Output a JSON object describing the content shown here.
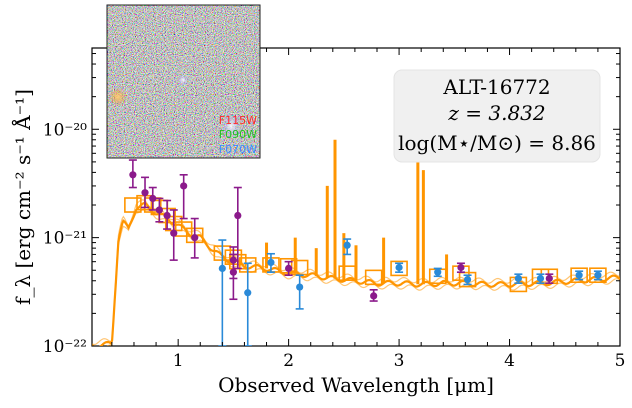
{
  "chart_data": {
    "type": "scatter",
    "xlabel": "Observed Wavelength [μm]",
    "ylabel": "f_λ [erg cm⁻² s⁻¹ Å⁻¹]",
    "xlim": [
      0.22,
      5.0
    ],
    "ylim_log10": [
      -22,
      -19.25
    ],
    "y_scale": "log",
    "x_ticks": [
      1,
      2,
      3,
      4,
      5
    ],
    "y_ticks": [
      {
        "exp": -22,
        "label": "10⁻²²"
      },
      {
        "exp": -21,
        "label": "10⁻²¹"
      },
      {
        "exp": -20,
        "label": "10⁻²⁰"
      }
    ],
    "info_box": {
      "object": "ALT-16772",
      "redshift": "z = 3.832",
      "mass": "log(M⋆/M⊙) = 8.86"
    },
    "cutout": {
      "filters": [
        {
          "label": "F115W",
          "color": "#ff2a2a"
        },
        {
          "label": "F090W",
          "color": "#22a822"
        },
        {
          "label": "F070W",
          "color": "#3a7dff"
        }
      ]
    },
    "colors": {
      "model": "#ff9500",
      "purple": "#8b1a8b",
      "blue": "#2a8ad8"
    },
    "series": [
      {
        "marker": "purple",
        "points": [
          {
            "x": 0.59,
            "y": 3.8e-21,
            "ylo": 2.9e-21,
            "yhi": 5.2e-21
          },
          {
            "x": 0.7,
            "y": 2.6e-21,
            "ylo": 1.9e-21,
            "yhi": 3.6e-21
          },
          {
            "x": 0.77,
            "y": 2.3e-21,
            "ylo": 1.8e-21,
            "yhi": 2.9e-21
          },
          {
            "x": 0.83,
            "y": 1.8e-21,
            "ylo": 1.4e-21,
            "yhi": 2.3e-21
          },
          {
            "x": 0.9,
            "y": 1.6e-21,
            "ylo": 1.2e-21,
            "yhi": 2.2e-21
          },
          {
            "x": 0.96,
            "y": 1.1e-21,
            "ylo": 6.2e-22,
            "yhi": 1.8e-21
          },
          {
            "x": 1.05,
            "y": 3e-21,
            "ylo": 1.5e-21,
            "yhi": 3.8e-21
          },
          {
            "x": 1.15,
            "y": 1e-21,
            "ylo": 6.5e-22,
            "yhi": 1.5e-21
          },
          {
            "x": 1.5,
            "y": 6.2e-22,
            "ylo": 4.2e-22,
            "yhi": 8.2e-22
          },
          {
            "x": 1.5,
            "y": 4.8e-22,
            "ylo": 2.7e-22,
            "yhi": 7e-22
          },
          {
            "x": 1.54,
            "y": 1.6e-21,
            "ylo": 5.2e-22,
            "yhi": 2.9e-21
          },
          {
            "x": 2.0,
            "y": 5.2e-22,
            "ylo": 4.5e-22,
            "yhi": 6e-22
          },
          {
            "x": 2.77,
            "y": 2.9e-22,
            "ylo": 2.6e-22,
            "yhi": 3.3e-22
          },
          {
            "x": 3.56,
            "y": 5.3e-22,
            "ylo": 4.8e-22,
            "yhi": 5.8e-22
          },
          {
            "x": 4.36,
            "y": 4.2e-22,
            "ylo": 3.8e-22,
            "yhi": 4.6e-22
          }
        ]
      },
      {
        "marker": "blue",
        "points": [
          {
            "x": 1.4,
            "y": 5.2e-22,
            "ylo": 1e-22,
            "yhi": 9.5e-22
          },
          {
            "x": 1.63,
            "y": 3.1e-22,
            "ylo": 1e-22,
            "yhi": 5.8e-22
          },
          {
            "x": 1.84,
            "y": 5.9e-22,
            "ylo": 4.8e-22,
            "yhi": 7.1e-22
          },
          {
            "x": 2.1,
            "y": 3.5e-22,
            "ylo": 2.2e-22,
            "yhi": 4.5e-22
          },
          {
            "x": 2.53,
            "y": 8.5e-22,
            "ylo": 7e-22,
            "yhi": 9.7e-22
          },
          {
            "x": 3.0,
            "y": 5.3e-22,
            "ylo": 4.8e-22,
            "yhi": 5.8e-22
          },
          {
            "x": 3.35,
            "y": 4.8e-22,
            "ylo": 4.4e-22,
            "yhi": 5.2e-22
          },
          {
            "x": 3.62,
            "y": 4.1e-22,
            "ylo": 3.7e-22,
            "yhi": 4.5e-22
          },
          {
            "x": 4.08,
            "y": 4.2e-22,
            "ylo": 3.8e-22,
            "yhi": 4.6e-22
          },
          {
            "x": 4.28,
            "y": 4.2e-22,
            "ylo": 3.8e-22,
            "yhi": 4.6e-22
          },
          {
            "x": 4.63,
            "y": 4.5e-22,
            "ylo": 4.1e-22,
            "yhi": 4.9e-22
          },
          {
            "x": 4.8,
            "y": 4.5e-22,
            "ylo": 4.1e-22,
            "yhi": 4.9e-22
          }
        ]
      },
      {
        "marker": "model-box",
        "points": [
          {
            "x": 0.59,
            "y": 2e-21
          },
          {
            "x": 0.7,
            "y": 2.1e-21
          },
          {
            "x": 0.77,
            "y": 2e-21
          },
          {
            "x": 0.83,
            "y": 1.9e-21
          },
          {
            "x": 0.9,
            "y": 1.6e-21
          },
          {
            "x": 0.96,
            "y": 1.35e-21
          },
          {
            "x": 1.05,
            "y": 1.2e-21
          },
          {
            "x": 1.15,
            "y": 1.05e-21
          },
          {
            "x": 1.4,
            "y": 7.2e-22
          },
          {
            "x": 1.5,
            "y": 6.6e-22
          },
          {
            "x": 1.54,
            "y": 6e-22
          },
          {
            "x": 1.63,
            "y": 5.6e-22
          },
          {
            "x": 1.84,
            "y": 5.6e-22
          },
          {
            "x": 2.0,
            "y": 5.5e-22
          },
          {
            "x": 2.1,
            "y": 5.3e-22
          },
          {
            "x": 2.53,
            "y": 4.7e-22
          },
          {
            "x": 2.77,
            "y": 4.3e-22
          },
          {
            "x": 3.0,
            "y": 5.2e-22
          },
          {
            "x": 3.35,
            "y": 4.4e-22
          },
          {
            "x": 3.56,
            "y": 4.7e-22
          },
          {
            "x": 3.62,
            "y": 4.1e-22
          },
          {
            "x": 4.08,
            "y": 3.7e-22
          },
          {
            "x": 4.28,
            "y": 4.4e-22
          },
          {
            "x": 4.36,
            "y": 4.4e-22
          },
          {
            "x": 4.63,
            "y": 4.5e-22
          },
          {
            "x": 4.8,
            "y": 4.5e-22
          }
        ]
      }
    ],
    "model_spectrum": {
      "continuum": [
        [
          0.22,
          1e-22
        ],
        [
          0.4,
          1.05e-22
        ],
        [
          0.46,
          1e-21
        ],
        [
          0.5,
          1.4e-21
        ],
        [
          0.55,
          1.2e-21
        ],
        [
          0.62,
          1.9e-21
        ],
        [
          0.7,
          2e-21
        ],
        [
          0.8,
          1.7e-21
        ],
        [
          0.9,
          1.5e-21
        ],
        [
          1.0,
          1.3e-21
        ],
        [
          1.1,
          1.1e-21
        ],
        [
          1.2,
          1e-21
        ],
        [
          1.3,
          8e-22
        ],
        [
          1.4,
          6.6e-22
        ],
        [
          1.5,
          6e-22
        ],
        [
          1.6,
          5.5e-22
        ],
        [
          1.8,
          5.2e-22
        ],
        [
          2.0,
          4.7e-22
        ],
        [
          2.2,
          4.5e-22
        ],
        [
          2.4,
          4.2e-22
        ],
        [
          2.6,
          4e-22
        ],
        [
          2.8,
          3.8e-22
        ],
        [
          3.0,
          3.8e-22
        ],
        [
          3.2,
          3.7e-22
        ],
        [
          3.4,
          3.8e-22
        ],
        [
          3.6,
          3.8e-22
        ],
        [
          3.8,
          3.7e-22
        ],
        [
          4.0,
          3.7e-22
        ],
        [
          4.3,
          3.8e-22
        ],
        [
          4.6,
          4e-22
        ],
        [
          5.0,
          4.3e-22
        ]
      ],
      "lines": [
        {
          "x": 1.8,
          "peak": 9e-22
        },
        {
          "x": 2.06,
          "peak": 1e-21
        },
        {
          "x": 2.25,
          "peak": 8e-22
        },
        {
          "x": 2.35,
          "peak": 3e-21
        },
        {
          "x": 2.42,
          "peak": 8e-21
        },
        {
          "x": 2.5,
          "peak": 1.1e-21
        },
        {
          "x": 2.61,
          "peak": 8.5e-22
        },
        {
          "x": 2.86,
          "peak": 1e-21
        },
        {
          "x": 3.17,
          "peak": 1.8e-20
        },
        {
          "x": 3.22,
          "peak": 4.2e-21
        },
        {
          "x": 3.43,
          "peak": 7e-22
        }
      ]
    }
  }
}
